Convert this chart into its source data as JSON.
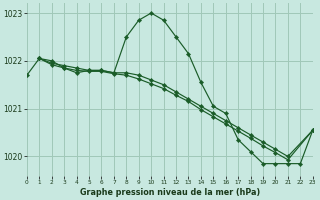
{
  "title": "Graphe pression niveau de la mer (hPa)",
  "bg_color": "#c8e8e0",
  "grid_color": "#a0c8b8",
  "line_color": "#1a5c28",
  "xlim": [
    0,
    23
  ],
  "ylim": [
    1019.6,
    1023.2
  ],
  "yticks": [
    1020,
    1021,
    1022,
    1023
  ],
  "xticks": [
    0,
    1,
    2,
    3,
    4,
    5,
    6,
    7,
    8,
    9,
    10,
    11,
    12,
    13,
    14,
    15,
    16,
    17,
    18,
    19,
    20,
    21,
    22,
    23
  ],
  "curve1_x": [
    0,
    1,
    2,
    3,
    4,
    5,
    6,
    7,
    8,
    9,
    10,
    11,
    12,
    13,
    14,
    15,
    16,
    17,
    18,
    19,
    20,
    21,
    22,
    23
  ],
  "curve1_y": [
    1021.7,
    1022.05,
    1022.0,
    1021.85,
    1021.75,
    1021.8,
    1021.8,
    1021.75,
    1022.5,
    1022.85,
    1023.0,
    1022.85,
    1022.5,
    1022.15,
    1021.55,
    1021.05,
    1020.9,
    1020.35,
    1020.1,
    1019.85,
    1019.85,
    1019.85,
    1019.85,
    1020.55
  ],
  "curve2_x": [
    1,
    2,
    3,
    4,
    5,
    6,
    7,
    8,
    9,
    10,
    11,
    12,
    13,
    14,
    15,
    16,
    17,
    18,
    19,
    20,
    21,
    23
  ],
  "curve2_y": [
    1022.05,
    1021.95,
    1021.9,
    1021.85,
    1021.8,
    1021.8,
    1021.75,
    1021.75,
    1021.7,
    1021.6,
    1021.5,
    1021.35,
    1021.2,
    1021.05,
    1020.9,
    1020.75,
    1020.6,
    1020.45,
    1020.3,
    1020.15,
    1020.0,
    1020.55
  ],
  "curve3_x": [
    1,
    2,
    3,
    4,
    5,
    6,
    7,
    8,
    9,
    10,
    11,
    12,
    13,
    14,
    15,
    16,
    17,
    18,
    19,
    20,
    21,
    23
  ],
  "curve3_y": [
    1022.05,
    1021.92,
    1021.85,
    1021.8,
    1021.78,
    1021.78,
    1021.73,
    1021.7,
    1021.62,
    1021.52,
    1021.42,
    1021.28,
    1021.15,
    1020.98,
    1020.83,
    1020.68,
    1020.53,
    1020.38,
    1020.22,
    1020.08,
    1019.93,
    1020.55
  ]
}
